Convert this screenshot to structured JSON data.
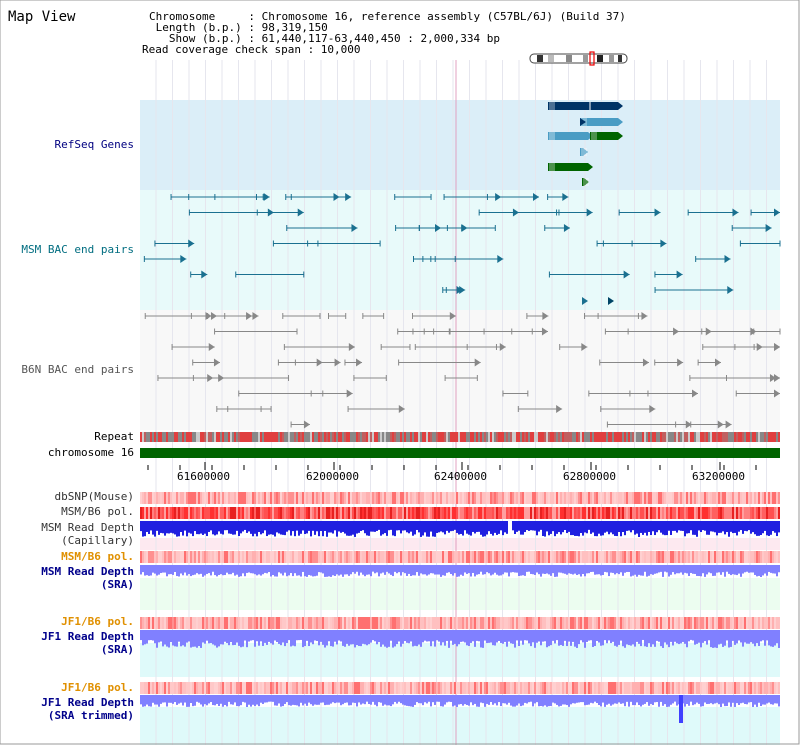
{
  "view_title": "Map View",
  "info": {
    "chromosome_line": "Chromosome     : Chromosome 16, reference assembly (C57BL/6J) (Build 37)",
    "length_line": " Length (b.p.) : 98,319,150",
    "show_line": "   Show (b.p.) : 61,440,117-63,440,450 : 2,000,334 bp",
    "coverage_line": "Read coverage check span : 10,000"
  },
  "tracks": {
    "refseq": "RefSeq Genes",
    "msm_bac": "MSM BAC end pairs",
    "b6n_bac": "B6N BAC end pairs",
    "repeat": "Repeat",
    "chromosome": "chromosome 16",
    "dbsnp": "dbSNP(Mouse)",
    "msm_b6_pol_1": "MSM/B6 pol.",
    "msm_read_depth_cap_1": "MSM Read Depth",
    "msm_read_depth_cap_2": "(Capillary)",
    "msm_b6_pol_2": "MSM/B6 pol.",
    "msm_read_depth_sra_1": "MSM Read Depth",
    "msm_read_depth_sra_2": "(SRA)",
    "jf1_b6_pol_1": "JF1/B6 pol.",
    "jf1_read_depth_1": "JF1 Read Depth",
    "jf1_read_depth_2": "(SRA)",
    "jf1_b6_pol_2": "JF1/B6 pol.",
    "jf1_trim_1": "JF1 Read Depth",
    "jf1_trim_2": "(SRA trimmed)"
  },
  "axis": {
    "ticks": [
      "61600000",
      "62000000",
      "62400000",
      "62800000",
      "63200000"
    ]
  },
  "colors": {
    "refseq_bg": "#dbeef8",
    "bac_bg": "#e8fafa",
    "msm_gene": "#003366",
    "light_gene": "#4a9cc4",
    "green_gene": "#006400",
    "msm_pair": "#1a7090",
    "b6n_pair": "#888888",
    "chromosome": "#006400",
    "depth_blue": "#2020e0",
    "sra_blue": "#8080ff",
    "pol_red": "#ff4040"
  }
}
